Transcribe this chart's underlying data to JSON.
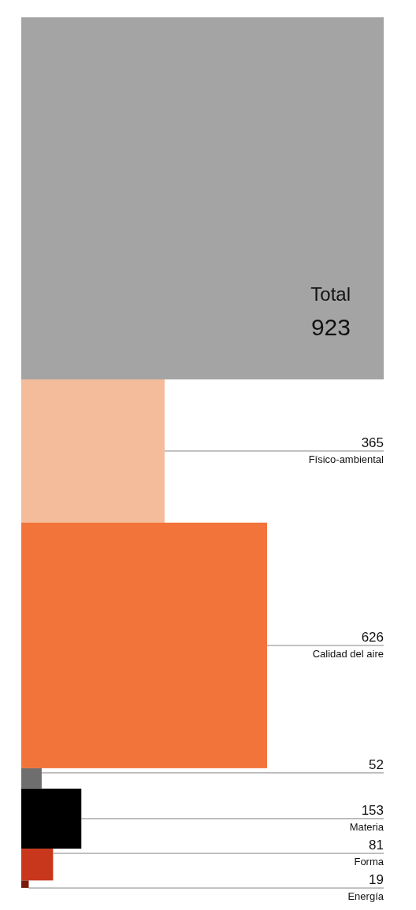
{
  "chart_data": {
    "type": "other",
    "categories": [
      "Total",
      "Físico-ambiental",
      "Calidad del aire",
      null,
      "Materia",
      "Forma",
      "Energía"
    ],
    "values": [
      923,
      365,
      626,
      52,
      153,
      81,
      19
    ],
    "colors": [
      "#a4a4a4",
      "#f4bc9a",
      "#f2743a",
      "#6e6e6e",
      "#000000",
      "#c8361c",
      "#7a1a0e"
    ],
    "data_labels": true
  }
}
